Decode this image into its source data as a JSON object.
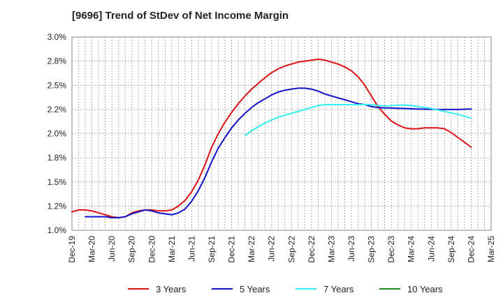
{
  "chart_data": {
    "type": "line",
    "title": "[9696]  Trend of StDev of Net Income Margin",
    "xlabel": "",
    "ylabel": "",
    "ylim": [
      1.0,
      3.0
    ],
    "y_ticks": [
      "1.0%",
      "1.2%",
      "1.5%",
      "1.8%",
      "2.0%",
      "2.2%",
      "2.5%",
      "2.8%",
      "3.0%"
    ],
    "x_ticks": [
      "Dec-19",
      "Mar-20",
      "Jun-20",
      "Sep-20",
      "Dec-20",
      "Mar-21",
      "Jun-21",
      "Sep-21",
      "Dec-21",
      "Mar-22",
      "Jun-22",
      "Sep-22",
      "Dec-22",
      "Mar-23",
      "Jun-23",
      "Sep-23",
      "Dec-23",
      "Mar-24",
      "Jun-24",
      "Sep-24",
      "Dec-24",
      "Mar-25"
    ],
    "x_range": [
      0,
      21
    ],
    "grid": true,
    "legend_position": "bottom",
    "series": [
      {
        "name": "3 Years",
        "color": "#dd1111",
        "x": [
          0,
          0.33,
          0.67,
          1,
          1.33,
          1.67,
          2,
          2.33,
          2.67,
          3,
          3.33,
          3.67,
          4,
          4.33,
          4.67,
          5,
          5.33,
          5.67,
          6,
          6.33,
          6.67,
          7,
          7.33,
          7.67,
          8,
          8.33,
          8.67,
          9,
          9.33,
          9.67,
          10,
          10.33,
          10.67,
          11,
          11.33,
          11.67,
          12,
          12.33,
          12.67,
          13,
          13.33,
          13.67,
          14,
          14.33,
          14.67,
          15,
          15.33,
          15.67,
          16,
          16.33,
          16.67,
          17,
          17.33,
          17.67,
          18,
          18.33,
          18.67,
          19,
          19.33,
          19.67,
          20
        ],
        "values": [
          1.19,
          1.21,
          1.21,
          1.2,
          1.18,
          1.16,
          1.14,
          1.13,
          1.14,
          1.18,
          1.2,
          1.21,
          1.21,
          1.2,
          1.2,
          1.21,
          1.25,
          1.31,
          1.4,
          1.52,
          1.68,
          1.86,
          2.0,
          2.12,
          2.22,
          2.31,
          2.39,
          2.46,
          2.52,
          2.58,
          2.63,
          2.67,
          2.7,
          2.72,
          2.74,
          2.75,
          2.76,
          2.77,
          2.76,
          2.74,
          2.72,
          2.69,
          2.65,
          2.59,
          2.5,
          2.39,
          2.28,
          2.2,
          2.13,
          2.09,
          2.06,
          2.05,
          2.05,
          2.06,
          2.06,
          2.06,
          2.05,
          2.01,
          1.96,
          1.91,
          1.86
        ]
      },
      {
        "name": "5 Years",
        "color": "#1111cc",
        "x": [
          0.67,
          1,
          1.33,
          1.67,
          2,
          2.33,
          2.67,
          3,
          3.33,
          3.67,
          4,
          4.33,
          4.67,
          5,
          5.33,
          5.67,
          6,
          6.33,
          6.67,
          7,
          7.33,
          7.67,
          8,
          8.33,
          8.67,
          9,
          9.33,
          9.67,
          10,
          10.33,
          10.67,
          11,
          11.33,
          11.67,
          12,
          12.33,
          12.67,
          13,
          13.33,
          13.67,
          14,
          14.33,
          14.67,
          15,
          15.33,
          15.67,
          16,
          16.33,
          16.67,
          17,
          17.33,
          17.67,
          18,
          18.33,
          18.67,
          19,
          19.33,
          19.67,
          20
        ],
        "values": [
          1.14,
          1.14,
          1.14,
          1.14,
          1.13,
          1.13,
          1.14,
          1.17,
          1.19,
          1.21,
          1.2,
          1.18,
          1.17,
          1.16,
          1.18,
          1.22,
          1.3,
          1.41,
          1.55,
          1.71,
          1.85,
          1.96,
          2.06,
          2.14,
          2.21,
          2.27,
          2.32,
          2.36,
          2.4,
          2.43,
          2.45,
          2.46,
          2.47,
          2.47,
          2.46,
          2.44,
          2.41,
          2.39,
          2.37,
          2.35,
          2.33,
          2.31,
          2.3,
          2.28,
          2.27,
          2.265,
          2.265,
          2.262,
          2.26,
          2.257,
          2.255,
          2.253,
          2.252,
          2.25,
          2.25,
          2.25,
          2.25,
          2.252,
          2.255
        ]
      },
      {
        "name": "7 Years",
        "color": "#33eeee",
        "x": [
          8.67,
          9,
          9.33,
          9.67,
          10,
          10.33,
          10.67,
          11,
          11.33,
          11.67,
          12,
          12.33,
          12.67,
          13,
          13.33,
          13.67,
          14,
          14.33,
          14.67,
          15,
          15.33,
          15.67,
          16,
          16.33,
          16.67,
          17,
          17.33,
          17.67,
          18,
          18.33,
          18.67,
          19,
          19.33,
          19.67,
          20
        ],
        "values": [
          1.98,
          2.03,
          2.07,
          2.11,
          2.14,
          2.17,
          2.19,
          2.21,
          2.23,
          2.25,
          2.27,
          2.29,
          2.3,
          2.3,
          2.3,
          2.3,
          2.3,
          2.3,
          2.3,
          2.3,
          2.29,
          2.285,
          2.29,
          2.295,
          2.295,
          2.29,
          2.28,
          2.27,
          2.26,
          2.245,
          2.23,
          2.215,
          2.2,
          2.18,
          2.16
        ]
      },
      {
        "name": "10 Years",
        "color": "#228822",
        "x": [],
        "values": []
      }
    ]
  }
}
